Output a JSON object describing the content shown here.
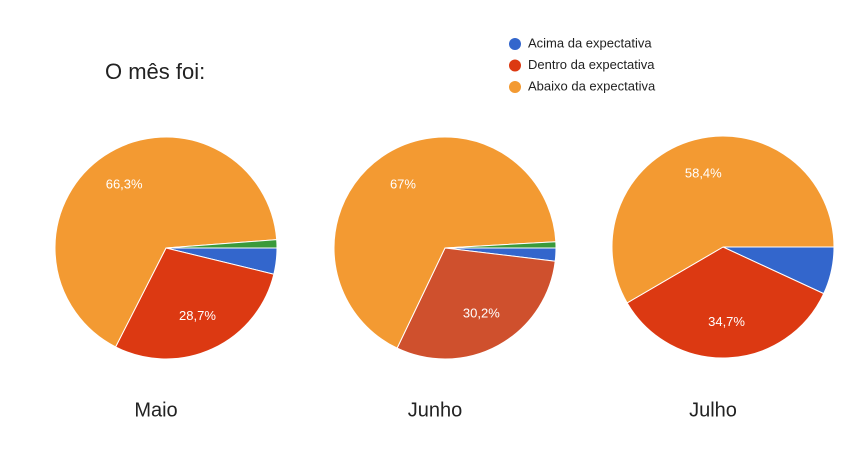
{
  "title": "O mês foi:",
  "chart_data": [
    {
      "type": "pie",
      "title": "Maio",
      "categories": [
        "Acima da expectativa",
        "Dentro da expectativa",
        "Abaixo da expectativa",
        null
      ],
      "values": [
        3.8,
        28.7,
        66.3,
        1.2
      ],
      "value_labels": [
        null,
        "28,7%",
        "66,3%",
        null
      ],
      "colors": [
        "#3366cc",
        "#dc3912",
        "#f39a32",
        "#3a9a3a"
      ]
    },
    {
      "type": "pie",
      "title": "Junho",
      "categories": [
        "Acima da expectativa",
        "Dentro da expectativa",
        "Abaixo da expectativa",
        null
      ],
      "values": [
        1.9,
        30.2,
        67,
        0.9
      ],
      "value_labels": [
        null,
        "30,2%",
        "67%",
        null
      ],
      "colors": [
        "#3366cc",
        "#cf502d",
        "#f39a32",
        "#3a9a3a"
      ]
    },
    {
      "type": "pie",
      "title": "Julho",
      "categories": [
        "Acima da expectativa",
        "Dentro da expectativa",
        "Abaixo da expectativa"
      ],
      "values": [
        6.9,
        34.7,
        58.4
      ],
      "value_labels": [
        null,
        "34,7%",
        "58,4%"
      ],
      "colors": [
        "#3366cc",
        "#dc3912",
        "#f39a32"
      ]
    }
  ]
}
